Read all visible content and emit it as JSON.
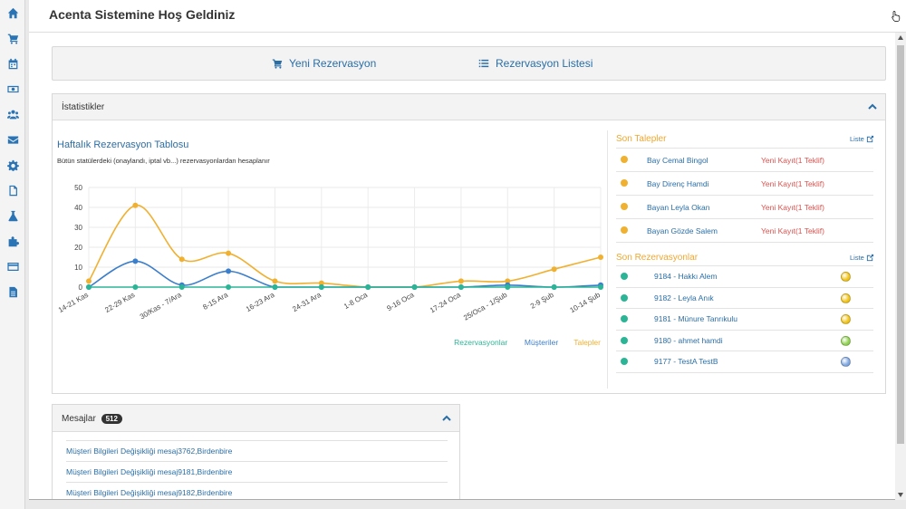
{
  "app": {
    "title": "Acenta Sistemine Hoş Geldiniz"
  },
  "sidebar": {
    "items": [
      {
        "icon": "home-icon"
      },
      {
        "icon": "cart-icon"
      },
      {
        "icon": "calendar-icon"
      },
      {
        "icon": "money-icon"
      },
      {
        "icon": "users-icon"
      },
      {
        "icon": "envelope-icon"
      },
      {
        "icon": "gear-icon"
      },
      {
        "icon": "file-icon"
      },
      {
        "icon": "flask-icon"
      },
      {
        "icon": "puzzle-icon"
      },
      {
        "icon": "credit-card-icon"
      },
      {
        "icon": "document-icon"
      }
    ]
  },
  "quick_actions": {
    "new_reservation": "Yeni Rezervasyon",
    "reservation_list": "Rezervasyon Listesi"
  },
  "stats": {
    "panel_title": "İstatistikler",
    "recent_requests": {
      "heading": "Son Talepler",
      "link": "Liste",
      "items": [
        {
          "name": "Bay Cemal Bingol",
          "status": "Yeni Kayıt(1 Teklif)"
        },
        {
          "name": "Bay Direnç Hamdi",
          "status": "Yeni Kayıt(1 Teklif)"
        },
        {
          "name": "Bayan Leyla Okan",
          "status": "Yeni Kayıt(1 Teklif)"
        },
        {
          "name": "Bayan Gözde Salem",
          "status": "Yeni Kayıt(1 Teklif)"
        }
      ]
    },
    "recent_reservations": {
      "heading": "Son Rezervasyonlar",
      "link": "Liste",
      "items": [
        {
          "name": "9184 - Hakkı Alem",
          "state_color": "#f0c419"
        },
        {
          "name": "9182 - Leyla Anık",
          "state_color": "#f0c419"
        },
        {
          "name": "9181 - Münure Tanrıkulu",
          "state_color": "#f0c419"
        },
        {
          "name": "9180 - ahmet hamdi",
          "state_color": "#8fd14f"
        },
        {
          "name": "9177 - TestA TestB",
          "state_color": "#7fa7e0"
        }
      ]
    }
  },
  "chart_data": {
    "type": "line",
    "title": "Haftalık Rezervasyon Tablosu",
    "subtitle": "Bütün statülerdeki (onaylandı, iptal vb...) rezervasyonlardan hesaplanır",
    "categories": [
      "14-21 Kas",
      "22-29 Kas",
      "30/Kas - 7/Ara",
      "8-15 Ara",
      "16-23 Ara",
      "24-31 Ara",
      "1-8 Oca",
      "9-16 Oca",
      "17-24 Oca",
      "25/Oca - 1/Şub",
      "2-9 Şub",
      "10-14 Şub"
    ],
    "series": [
      {
        "name": "Rezervasyonlar",
        "color": "#2bb596",
        "values": [
          0,
          0,
          0,
          0,
          0,
          0,
          0,
          0,
          0,
          0,
          0,
          0
        ]
      },
      {
        "name": "Müşteriler",
        "color": "#3b7ecb",
        "values": [
          0,
          13,
          1,
          8,
          0,
          0,
          0,
          0,
          0,
          1,
          0,
          1
        ]
      },
      {
        "name": "Talepler",
        "color": "#f0b030",
        "values": [
          3,
          41,
          14,
          17,
          3,
          2,
          0,
          0,
          3,
          3,
          9,
          15
        ]
      }
    ],
    "ylim": [
      0,
      50
    ],
    "yticks": [
      0,
      10,
      20,
      30,
      40,
      50
    ],
    "grid": true,
    "legend": "bottom-right"
  },
  "messages": {
    "title": "Mesajlar",
    "count": "512",
    "items": [
      "Müşteri Bilgileri Değişikliği mesaj3762,Birdenbire",
      "Müşteri Bilgileri Değişikliği mesaj9181,Birdenbire",
      "Müşteri Bilgileri Değişikliği mesaj9182,Birdenbire"
    ]
  }
}
